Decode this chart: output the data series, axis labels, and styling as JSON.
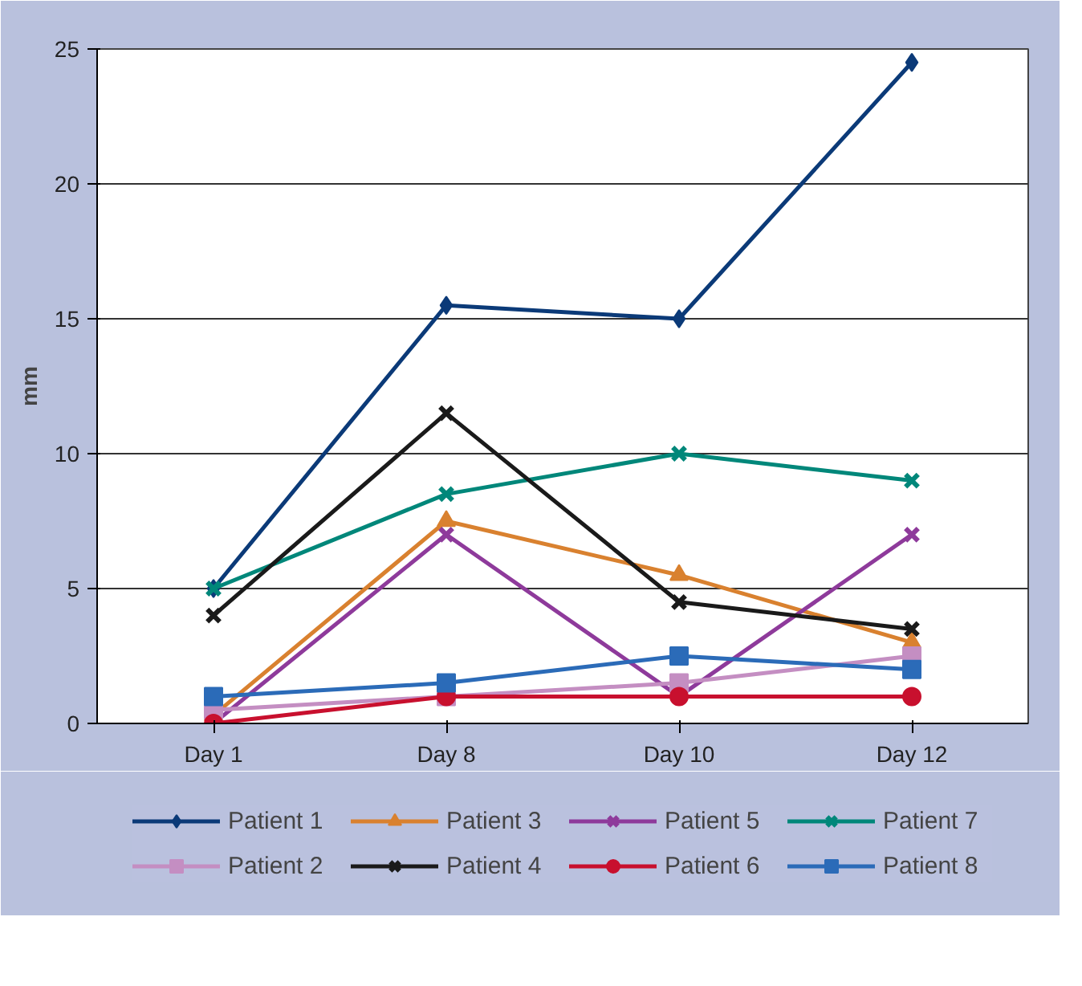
{
  "chart_data": {
    "type": "line",
    "ylabel": "mm",
    "categories": [
      "Day 1",
      "Day 8",
      "Day 10",
      "Day 12"
    ],
    "ylim": [
      0,
      25
    ],
    "yticks": [
      0,
      5,
      10,
      15,
      20,
      25
    ],
    "grid": "y",
    "legend": "bottom",
    "line_style": "solid",
    "series": [
      {
        "name": "Patient 1",
        "color": "#0b3a78",
        "marker": "diamond",
        "values": [
          5,
          15.5,
          15,
          24.5
        ]
      },
      {
        "name": "Patient 3",
        "color": "#d9812f",
        "marker": "triangle",
        "values": [
          0.3,
          7.5,
          5.5,
          3
        ]
      },
      {
        "name": "Patient 5",
        "color": "#8e3a9b",
        "marker": "cross",
        "values": [
          0,
          7,
          1,
          7
        ]
      },
      {
        "name": "Patient 7",
        "color": "#00877a",
        "marker": "cross",
        "values": [
          5,
          8.5,
          10,
          9
        ]
      },
      {
        "name": "Patient 2",
        "color": "#c48ec2",
        "marker": "square",
        "values": [
          0.5,
          1,
          1.5,
          2.5
        ]
      },
      {
        "name": "Patient 4",
        "color": "#1a1a1a",
        "marker": "cross",
        "values": [
          4,
          11.5,
          4.5,
          3.5
        ]
      },
      {
        "name": "Patient 6",
        "color": "#c8102e",
        "marker": "circle",
        "values": [
          0,
          1,
          1,
          1
        ]
      },
      {
        "name": "Patient 8",
        "color": "#2b6bb8",
        "marker": "square",
        "values": [
          1,
          1.5,
          2.5,
          2
        ]
      }
    ]
  }
}
